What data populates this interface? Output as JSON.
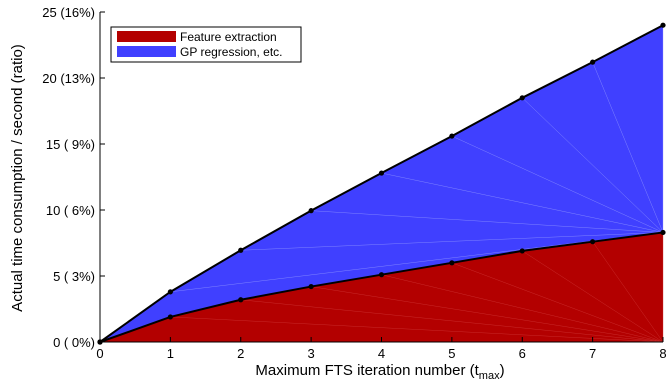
{
  "chart_data": {
    "type": "area",
    "stacked": true,
    "xlabel": "Maximum FTS iteration number (t",
    "xlabel_sub": "max",
    "xlabel_close": ")",
    "ylabel": "Actual time consumption / second (ratio)",
    "x": [
      0,
      1,
      2,
      3,
      4,
      5,
      6,
      7,
      8
    ],
    "xlim": [
      0,
      8
    ],
    "ylim": [
      0,
      25
    ],
    "yticks": [
      0,
      5,
      10,
      15,
      20,
      25
    ],
    "ytick_labels": [
      "0 ( 0%)",
      "5 ( 3%)",
      "10 ( 6%)",
      "15 ( 9%)",
      "20 (13%)",
      "25 (16%)"
    ],
    "xtick_labels": [
      "0",
      "1",
      "2",
      "3",
      "4",
      "5",
      "6",
      "7",
      "8"
    ],
    "grid": false,
    "legend_position": "top-left",
    "series": [
      {
        "name": "Feature extraction",
        "color": "#b30000",
        "values": [
          0,
          1.9,
          3.2,
          4.2,
          5.1,
          6.0,
          6.9,
          7.6,
          8.3
        ]
      },
      {
        "name": "GP regression, etc.",
        "color": "#4040ff",
        "values": [
          0,
          1.9,
          3.75,
          5.75,
          7.7,
          9.6,
          11.6,
          13.6,
          15.7
        ]
      }
    ]
  }
}
